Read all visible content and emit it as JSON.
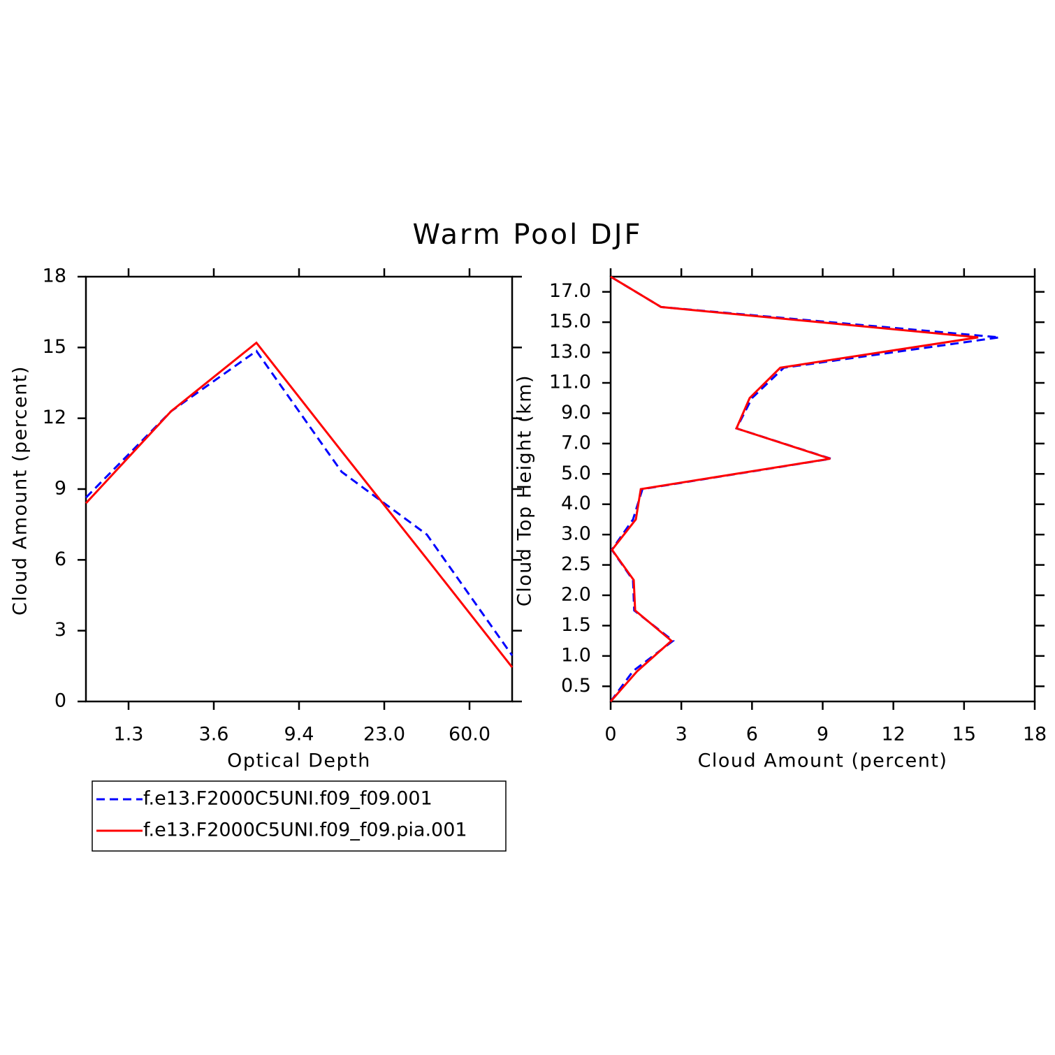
{
  "title": "Warm Pool DJF",
  "chart_data": [
    {
      "type": "line",
      "xlabel": "Optical Depth",
      "ylabel": "Cloud Amount (percent)",
      "x": [
        0,
        1,
        2,
        3,
        4,
        5
      ],
      "xlim": [
        0,
        5
      ],
      "xticks": [
        {
          "value": 0.5,
          "label": "1.3"
        },
        {
          "value": 1.5,
          "label": "3.6"
        },
        {
          "value": 2.5,
          "label": "9.4"
        },
        {
          "value": 3.5,
          "label": "23.0"
        },
        {
          "value": 4.5,
          "label": "60.0"
        }
      ],
      "ylim": [
        0,
        18
      ],
      "yticks": [
        0,
        3,
        6,
        9,
        12,
        15,
        18
      ],
      "series": [
        {
          "name": "f.e13.F2000C5UNI.f09_f09.001",
          "color": "#0000ff",
          "style": "dashed",
          "values": [
            8.64,
            12.3,
            14.85,
            9.73,
            7.07,
            1.95
          ]
        },
        {
          "name": "f.e13.F2000C5UNI.f09_f09.pia.001",
          "color": "#ff0000",
          "style": "solid",
          "values": [
            8.4,
            12.3,
            15.2,
            10.6,
            6.04,
            1.45
          ]
        }
      ]
    },
    {
      "type": "line",
      "orientation": "horizontal",
      "xlabel": "Cloud Amount (percent)",
      "ylabel": "Cloud Top Height (km)",
      "y": [
        0,
        1,
        2,
        3,
        4,
        5,
        6,
        7,
        8,
        9,
        10,
        11,
        12,
        13,
        14
      ],
      "ylim": [
        0,
        14
      ],
      "yticks": [
        {
          "value": 0.5,
          "label": "0.5"
        },
        {
          "value": 1.5,
          "label": "1.0"
        },
        {
          "value": 2.5,
          "label": "1.5"
        },
        {
          "value": 3.5,
          "label": "2.0"
        },
        {
          "value": 4.5,
          "label": "2.5"
        },
        {
          "value": 5.5,
          "label": "3.0"
        },
        {
          "value": 6.5,
          "label": "4.0"
        },
        {
          "value": 7.5,
          "label": "5.0"
        },
        {
          "value": 8.5,
          "label": "7.0"
        },
        {
          "value": 9.5,
          "label": "9.0"
        },
        {
          "value": 10.5,
          "label": "11.0"
        },
        {
          "value": 11.5,
          "label": "13.0"
        },
        {
          "value": 12.5,
          "label": "15.0"
        },
        {
          "value": 13.5,
          "label": "17.0"
        }
      ],
      "xlim": [
        0,
        18
      ],
      "xticks": [
        0,
        3,
        6,
        9,
        12,
        15,
        18
      ],
      "series": [
        {
          "color": "#0000ff",
          "style": "dashed",
          "values": [
            0,
            0.95,
            2.65,
            1.0,
            0.95,
            0.05,
            0.95,
            1.35,
            9.35,
            5.34,
            6.0,
            7.35,
            16.5,
            2.14,
            0
          ]
        },
        {
          "color": "#ff0000",
          "style": "solid",
          "values": [
            0,
            1.13,
            2.58,
            1.04,
            0.98,
            0.06,
            1.07,
            1.28,
            9.32,
            5.34,
            5.9,
            7.2,
            15.6,
            2.14,
            0
          ]
        }
      ]
    }
  ]
}
